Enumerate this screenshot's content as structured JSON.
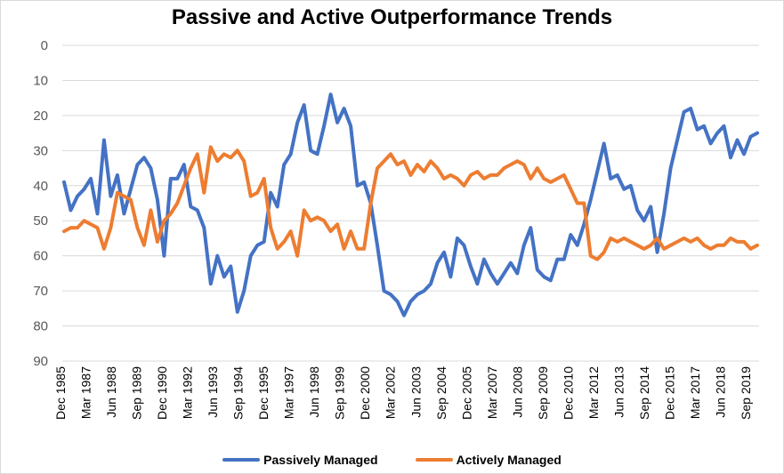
{
  "chart_data": {
    "type": "line",
    "title": "Passive and Active Outperformance Trends",
    "xlabel": "",
    "ylabel": "",
    "ylim": [
      0,
      90
    ],
    "y_reversed": true,
    "y_ticks": [
      "0",
      "10",
      "20",
      "30",
      "40",
      "50",
      "60",
      "70",
      "80",
      "90"
    ],
    "x_tick_labels": [
      "Dec 1985",
      "Mar 1987",
      "Jun 1988",
      "Sep 1989",
      "Dec 1990",
      "Mar 1992",
      "Jun 1993",
      "Sep 1994",
      "Dec 1995",
      "Mar 1997",
      "Jun 1998",
      "Sep 1999",
      "Dec 2000",
      "Mar 2002",
      "Jun 2003",
      "Sep 2004",
      "Dec 2005",
      "Mar 2007",
      "Jun 2008",
      "Sep 2009",
      "Dec 2010",
      "Mar 2012",
      "Jun 2013",
      "Sep 2014",
      "Dec 2015",
      "Mar 2017",
      "Jun 2018",
      "Sep 2019"
    ],
    "legend_position": "bottom",
    "grid": true,
    "series": [
      {
        "name": "Passively Managed",
        "color": "#4472C4",
        "values": [
          39,
          47,
          43,
          41,
          38,
          48,
          27,
          43,
          37,
          48,
          41,
          34,
          32,
          35,
          44,
          60,
          38,
          38,
          34,
          46,
          47,
          52,
          68,
          60,
          66,
          63,
          76,
          70,
          60,
          57,
          56,
          42,
          46,
          34,
          31,
          22,
          17,
          30,
          31,
          23,
          14,
          22,
          18,
          23,
          40,
          39,
          45,
          57,
          70,
          71,
          73,
          77,
          73,
          71,
          70,
          68,
          62,
          59,
          66,
          55,
          57,
          63,
          68,
          61,
          65,
          68,
          65,
          62,
          65,
          57,
          52,
          64,
          66,
          67,
          61,
          61,
          54,
          57,
          51,
          44,
          36,
          28,
          38,
          37,
          41,
          40,
          47,
          50,
          46,
          59,
          48,
          35,
          27,
          19,
          18,
          24,
          23,
          28,
          25,
          23,
          32,
          27,
          31,
          26,
          25
        ]
      },
      {
        "name": "Actively Managed",
        "color": "#ED7D31",
        "values": [
          53,
          52,
          52,
          50,
          51,
          52,
          58,
          52,
          42,
          43,
          44,
          52,
          57,
          47,
          56,
          50,
          48,
          45,
          40,
          35,
          31,
          42,
          29,
          33,
          31,
          32,
          30,
          33,
          43,
          42,
          38,
          52,
          58,
          56,
          53,
          60,
          47,
          50,
          49,
          50,
          53,
          51,
          58,
          53,
          58,
          58,
          45,
          35,
          33,
          31,
          34,
          33,
          37,
          34,
          36,
          33,
          35,
          38,
          37,
          38,
          40,
          37,
          36,
          38,
          37,
          37,
          35,
          34,
          33,
          34,
          38,
          35,
          38,
          39,
          38,
          37,
          41,
          45,
          45,
          60,
          61,
          59,
          55,
          56,
          55,
          56,
          57,
          58,
          57,
          55,
          58,
          57,
          56,
          55,
          56,
          55,
          57,
          58,
          57,
          57,
          55,
          56,
          56,
          58,
          57
        ]
      }
    ]
  }
}
